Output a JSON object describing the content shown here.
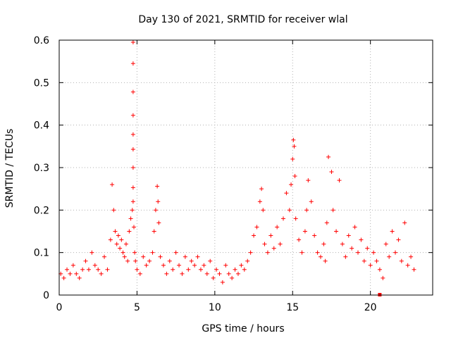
{
  "chart_data": {
    "type": "scatter",
    "title": "Day 130 of 2021, SRMTID for receiver wlal",
    "xlabel": "GPS time / hours",
    "ylabel": "SRMTID / TECUs",
    "xlim": [
      0,
      24
    ],
    "ylim": [
      0,
      0.6
    ],
    "x_ticks": [
      0,
      5,
      10,
      15,
      20
    ],
    "y_ticks": [
      0,
      0.1,
      0.2,
      0.3,
      0.4,
      0.5,
      0.6
    ],
    "x_tick_labels": [
      "0",
      "5",
      "10",
      "15",
      "20"
    ],
    "y_tick_labels": [
      "0",
      "0.1",
      "0.2",
      "0.3",
      "0.4",
      "0.5",
      "0.6"
    ],
    "grid": true,
    "marker": "+",
    "color": "#ff0000",
    "series": [
      {
        "name": "SRMTID",
        "x": [
          0.1,
          0.3,
          0.5,
          0.7,
          0.9,
          1.1,
          1.3,
          1.5,
          1.7,
          1.9,
          2.1,
          2.3,
          2.5,
          2.7,
          2.9,
          3.1,
          3.3,
          3.4,
          3.5,
          3.6,
          3.7,
          3.8,
          3.9,
          4.0,
          4.1,
          4.2,
          4.3,
          4.4,
          4.5,
          4.6,
          4.7,
          4.75,
          4.75,
          4.75,
          4.75,
          4.75,
          4.75,
          4.75,
          4.75,
          4.75,
          4.8,
          4.85,
          4.9,
          5.0,
          5.2,
          5.4,
          5.6,
          5.8,
          6.0,
          6.1,
          6.2,
          6.3,
          6.35,
          6.4,
          6.5,
          6.7,
          6.9,
          7.1,
          7.3,
          7.5,
          7.7,
          7.9,
          8.1,
          8.3,
          8.5,
          8.7,
          8.9,
          9.1,
          9.3,
          9.5,
          9.7,
          9.9,
          10.1,
          10.3,
          10.5,
          10.7,
          10.9,
          11.1,
          11.3,
          11.5,
          11.7,
          11.9,
          12.1,
          12.3,
          12.5,
          12.7,
          12.9,
          13.0,
          13.1,
          13.2,
          13.4,
          13.6,
          13.8,
          14.0,
          14.2,
          14.4,
          14.6,
          14.8,
          14.9,
          15.0,
          15.05,
          15.1,
          15.15,
          15.2,
          15.4,
          15.6,
          15.8,
          15.9,
          16.0,
          16.2,
          16.4,
          16.6,
          16.8,
          17.0,
          17.1,
          17.2,
          17.3,
          17.5,
          17.6,
          17.8,
          18.0,
          18.2,
          18.4,
          18.6,
          18.8,
          19.0,
          19.2,
          19.4,
          19.6,
          19.8,
          20.0,
          20.2,
          20.4,
          20.6,
          20.8,
          21.0,
          21.2,
          21.4,
          21.6,
          21.8,
          22.0,
          22.2,
          22.4,
          22.6,
          22.8
        ],
        "y": [
          0.05,
          0.04,
          0.06,
          0.05,
          0.07,
          0.05,
          0.04,
          0.06,
          0.08,
          0.06,
          0.1,
          0.07,
          0.06,
          0.05,
          0.09,
          0.06,
          0.13,
          0.26,
          0.2,
          0.15,
          0.12,
          0.14,
          0.11,
          0.13,
          0.1,
          0.09,
          0.12,
          0.08,
          0.15,
          0.18,
          0.2,
          0.595,
          0.545,
          0.478,
          0.423,
          0.378,
          0.343,
          0.3,
          0.253,
          0.22,
          0.16,
          0.1,
          0.08,
          0.06,
          0.05,
          0.09,
          0.07,
          0.08,
          0.1,
          0.15,
          0.2,
          0.256,
          0.22,
          0.17,
          0.09,
          0.07,
          0.05,
          0.08,
          0.06,
          0.1,
          0.07,
          0.05,
          0.09,
          0.06,
          0.08,
          0.07,
          0.09,
          0.06,
          0.07,
          0.05,
          0.08,
          0.04,
          0.06,
          0.05,
          0.03,
          0.07,
          0.05,
          0.04,
          0.06,
          0.05,
          0.07,
          0.06,
          0.08,
          0.1,
          0.14,
          0.16,
          0.22,
          0.25,
          0.2,
          0.12,
          0.1,
          0.14,
          0.11,
          0.16,
          0.12,
          0.18,
          0.24,
          0.2,
          0.26,
          0.32,
          0.365,
          0.35,
          0.28,
          0.18,
          0.13,
          0.1,
          0.15,
          0.2,
          0.27,
          0.22,
          0.14,
          0.1,
          0.09,
          0.12,
          0.08,
          0.17,
          0.325,
          0.29,
          0.2,
          0.15,
          0.27,
          0.12,
          0.09,
          0.14,
          0.11,
          0.16,
          0.1,
          0.13,
          0.08,
          0.11,
          0.07,
          0.1,
          0.08,
          0.06,
          0.04,
          0.12,
          0.09,
          0.15,
          0.1,
          0.13,
          0.08,
          0.17,
          0.07,
          0.09,
          0.06
        ]
      }
    ],
    "outlier_point": {
      "x": 20.6,
      "y": 0.0
    }
  }
}
